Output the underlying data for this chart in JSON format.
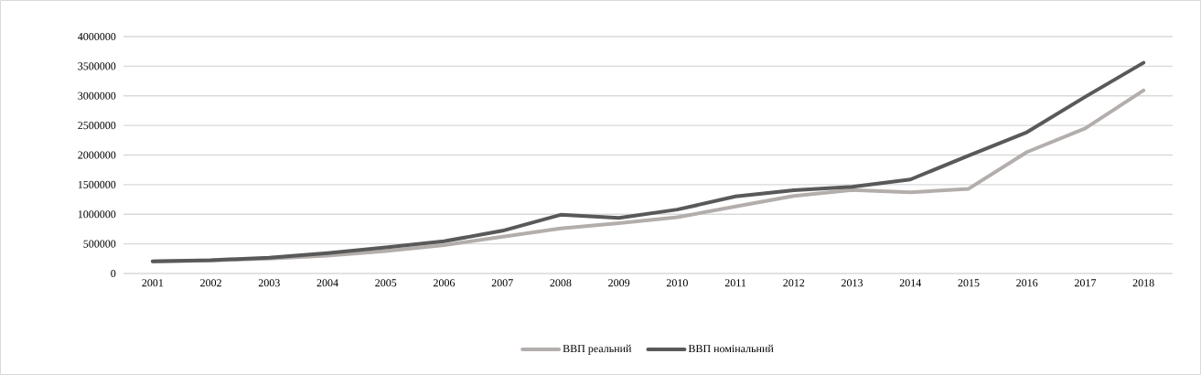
{
  "chart_data": {
    "type": "line",
    "categories": [
      "2001",
      "2002",
      "2003",
      "2004",
      "2005",
      "2006",
      "2007",
      "2008",
      "2009",
      "2010",
      "2011",
      "2012",
      "2013",
      "2014",
      "2015",
      "2016",
      "2017",
      "2018"
    ],
    "series": [
      {
        "name": "ВВП реальний",
        "color": "#b3aeac",
        "values": [
          205000,
          220000,
          250000,
          300000,
          380000,
          480000,
          620000,
          760000,
          850000,
          950000,
          1130000,
          1310000,
          1410000,
          1370000,
          1430000,
          2050000,
          2450000,
          3090000
        ]
      },
      {
        "name": "ВВП номінальний",
        "color": "#595959",
        "values": [
          205000,
          225000,
          267000,
          345000,
          441000,
          544000,
          721000,
          991000,
          937000,
          1079000,
          1300000,
          1405000,
          1465000,
          1587000,
          1989000,
          2385000,
          2983000,
          3558000
        ]
      }
    ],
    "ylim": [
      0,
      4000000
    ],
    "yticks": [
      0,
      500000,
      1000000,
      1500000,
      2000000,
      2500000,
      3000000,
      3500000,
      4000000
    ],
    "grid": "y",
    "legend": "bottom",
    "line_style": "solid"
  }
}
